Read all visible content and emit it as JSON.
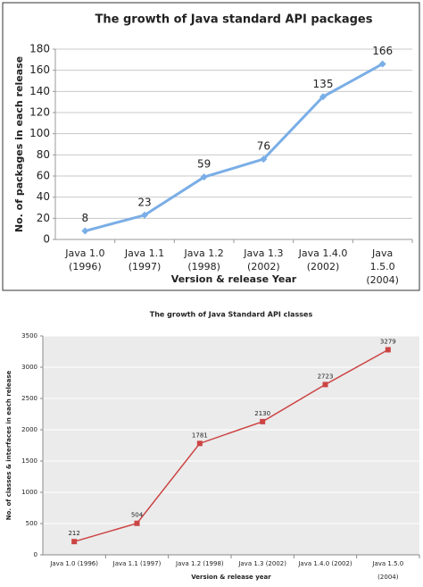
{
  "chart_data": [
    {
      "type": "line",
      "title": "The growth of Java standard API packages",
      "ylabel": "No. of packages in each release",
      "xlabel": "Version & release Year",
      "categories": [
        "Java 1.0\n(1996)",
        "Java 1.1\n(1997)",
        "Java 1.2\n(1998)",
        "Java 1.3\n(2002)",
        "Java 1.4.0\n(2002)",
        "Java 1.5.0\n(2004)"
      ],
      "values": [
        8,
        23,
        59,
        76,
        135,
        166
      ],
      "color": "#7aaee6",
      "marker": "diamond",
      "ylim": [
        0,
        180
      ],
      "yticks": [
        0,
        20,
        40,
        60,
        80,
        100,
        120,
        140,
        160,
        180
      ],
      "grid": true
    },
    {
      "type": "line",
      "title": "The growth of Java Standard API classes",
      "ylabel": "No. of classes & interfaces in each release",
      "xlabel": "Version & release year",
      "categories": [
        "Java 1.0 (1996)",
        "Java 1.1 (1997)",
        "Java 1.2 (1998)",
        "Java 1.3 (2002)",
        "Java 1.4.0 (2002)",
        "Java 1.5.0 (2004)"
      ],
      "values": [
        212,
        504,
        1781,
        2130,
        2723,
        3279
      ],
      "color": "#cc4444",
      "marker": "square",
      "ylim": [
        0,
        3500
      ],
      "yticks": [
        0,
        500,
        1000,
        1500,
        2000,
        2500,
        3000,
        3500
      ],
      "grid": true
    }
  ]
}
